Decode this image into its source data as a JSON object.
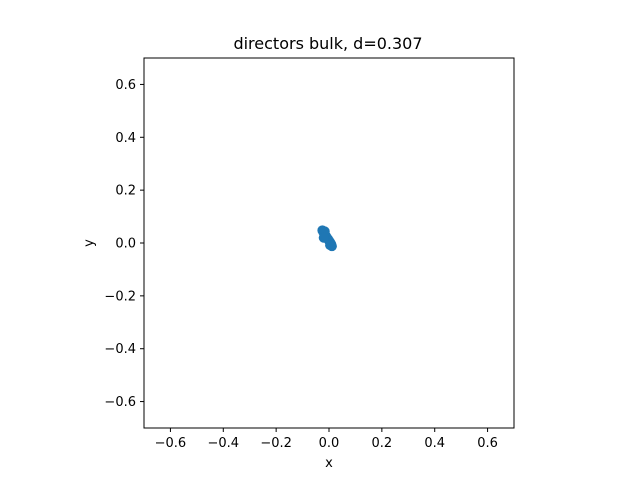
{
  "chart_data": {
    "type": "scatter",
    "title": "directors bulk, d=0.307",
    "xlabel": "x",
    "ylabel": "y",
    "xlim": [
      -0.7,
      0.7
    ],
    "ylim": [
      -0.7,
      0.7
    ],
    "xticks": [
      -0.6,
      -0.4,
      -0.2,
      0.0,
      0.2,
      0.4,
      0.6
    ],
    "yticks": [
      -0.6,
      -0.4,
      -0.2,
      0.0,
      0.2,
      0.4,
      0.6
    ],
    "xtick_labels": [
      "−0.6",
      "−0.4",
      "−0.2",
      "0.0",
      "0.2",
      "0.4",
      "0.6"
    ],
    "ytick_labels": [
      "−0.6",
      "−0.4",
      "−0.2",
      "0.0",
      "0.2",
      "0.4",
      "0.6"
    ],
    "grid": false,
    "marker_color": "#1f77b4",
    "series": [
      {
        "x": [
          -0.025,
          -0.022,
          -0.018,
          -0.014,
          -0.01,
          -0.006,
          -0.002,
          0.002,
          0.006,
          0.009,
          0.011,
          0.004,
          -0.016,
          -0.02
        ],
        "y": [
          0.048,
          0.042,
          0.036,
          0.03,
          0.024,
          0.018,
          0.012,
          0.006,
          0.0,
          -0.006,
          -0.012,
          -0.008,
          0.044,
          0.02
        ]
      }
    ]
  }
}
